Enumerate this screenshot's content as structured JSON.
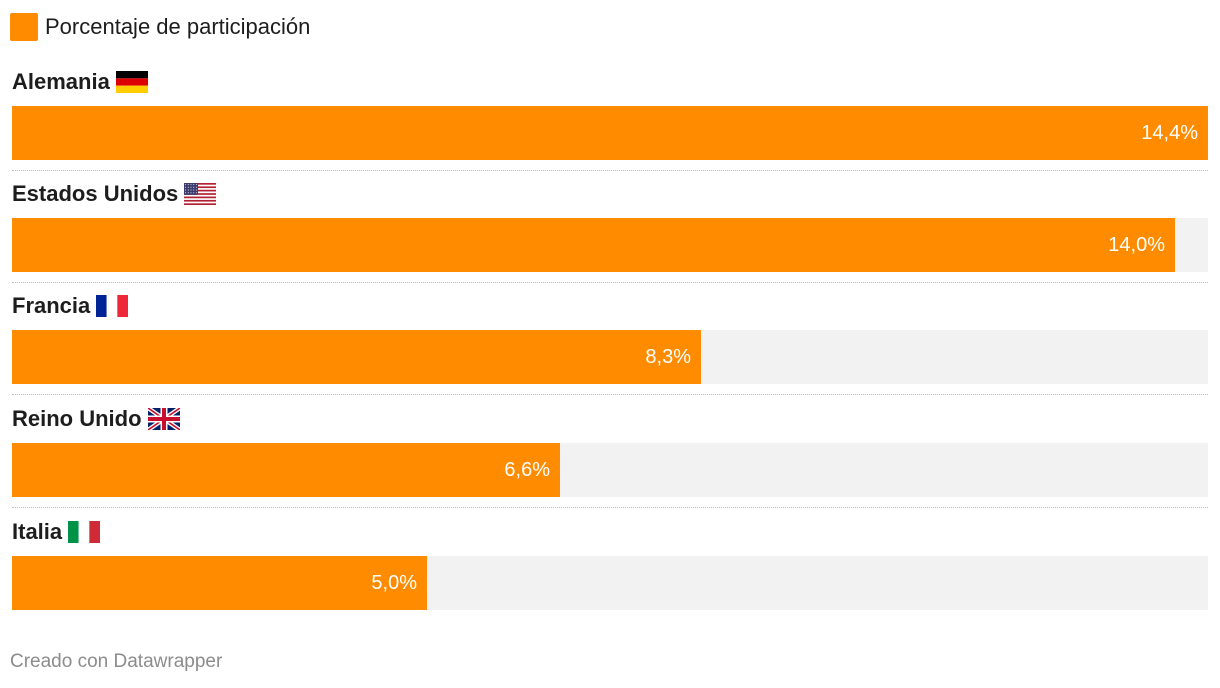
{
  "legend": {
    "label": "Porcentaje de participación",
    "color": "#ff8c00"
  },
  "chart_data": {
    "type": "bar",
    "orientation": "horizontal",
    "categories": [
      "Alemania",
      "Estados Unidos",
      "Francia",
      "Reino Unido",
      "Italia"
    ],
    "series": [
      {
        "name": "Porcentaje de participación",
        "values": [
          14.4,
          14.0,
          8.3,
          6.6,
          5.0
        ],
        "value_labels": [
          "14,4%",
          "14,0%",
          "8,3%",
          "6,6%",
          "5,0%"
        ]
      }
    ],
    "flags": [
      "germany-flag-icon",
      "usa-flag-icon",
      "france-flag-icon",
      "uk-flag-icon",
      "italy-flag-icon"
    ],
    "xlim": [
      0,
      14.4
    ],
    "bar_color": "#ff8c00",
    "track_color": "#f2f2f2",
    "legend_position": "top-left",
    "grid": false
  },
  "footer": {
    "credit": "Creado con Datawrapper"
  }
}
